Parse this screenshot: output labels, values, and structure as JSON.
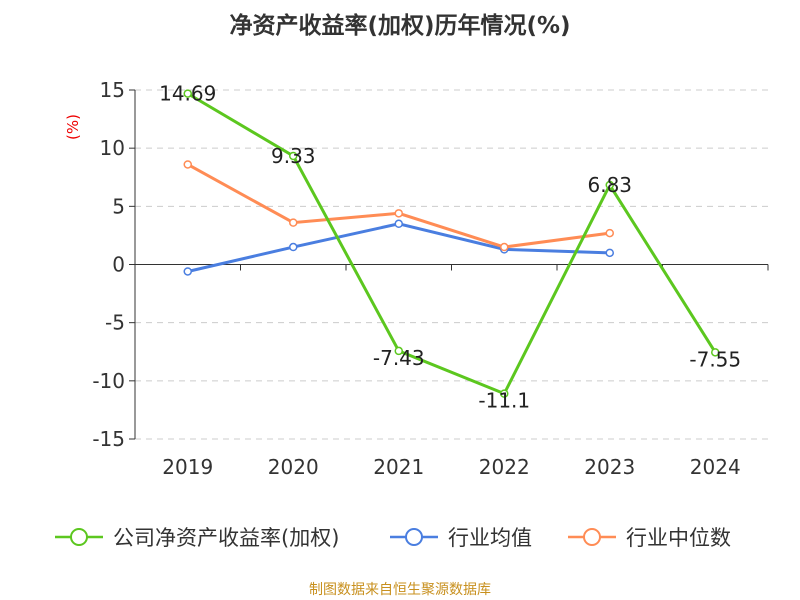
{
  "chart_data": {
    "type": "line",
    "title": "净资产收益率(加权)历年情况(%)",
    "ylabel": "(%)",
    "categories": [
      "2019",
      "2020",
      "2021",
      "2022",
      "2023",
      "2024"
    ],
    "ylim": [
      -15,
      15
    ],
    "yticks": [
      "15",
      "10",
      "5",
      "0",
      "-5",
      "-10",
      "-15"
    ],
    "ytick_values": [
      15,
      10,
      5,
      0,
      -5,
      -10,
      -15
    ],
    "grid": true,
    "legend_position": "bottom",
    "series": [
      {
        "name": "公司净资产收益率(加权)",
        "color": "#5cc71f",
        "values": [
          14.69,
          9.33,
          -7.43,
          -11.1,
          6.83,
          -7.55
        ],
        "labels": [
          "14.69",
          "9.33",
          "-7.43",
          "-11.1",
          "6.83",
          "-7.55"
        ]
      },
      {
        "name": "行业均值",
        "color": "#4a7ee0",
        "values": [
          -0.6,
          1.5,
          3.5,
          1.3,
          1.0,
          null
        ]
      },
      {
        "name": "行业中位数",
        "color": "#ff8c55",
        "values": [
          8.6,
          3.6,
          4.4,
          1.5,
          2.7,
          null
        ]
      }
    ],
    "source": "制图数据来自恒生聚源数据库"
  }
}
